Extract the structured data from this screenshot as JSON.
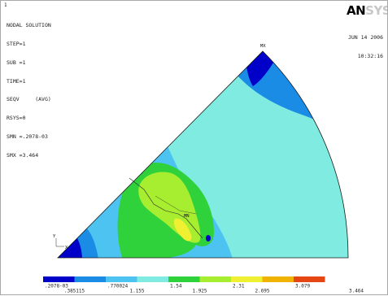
{
  "window": {
    "number": "1"
  },
  "header": {
    "title": "NODAL SOLUTION",
    "lines": [
      "STEP=1",
      "SUB =1",
      "TIME=1",
      "SEQV     (AVG)",
      "RSYS=0",
      "SMN =.2078-03",
      "SMX =3.464"
    ]
  },
  "logo": {
    "main": "AN",
    "tail": "SYS"
  },
  "datetime": {
    "date": "JUN 14 2006",
    "time": "10:32:16"
  },
  "markers": {
    "max": "MX",
    "min": "MN",
    "origin_axis_y": "Y",
    "origin_axis_x": "X"
  },
  "colors": {
    "band1": "#0000c8",
    "band2": "#1a8ce6",
    "band3": "#4cc3f0",
    "band4": "#80ebe0",
    "band5": "#30d23c",
    "band6": "#a8ee30",
    "band7": "#f0f032",
    "band8": "#f0b400",
    "band9": "#e64614"
  },
  "legend": {
    "top_labels": [
      ".2078-03",
      ".770024",
      "1.54",
      "2.31",
      "3.079"
    ],
    "bottom_labels": [
      ".385115",
      "1.155",
      "1.925",
      "2.695",
      "3.464"
    ]
  }
}
